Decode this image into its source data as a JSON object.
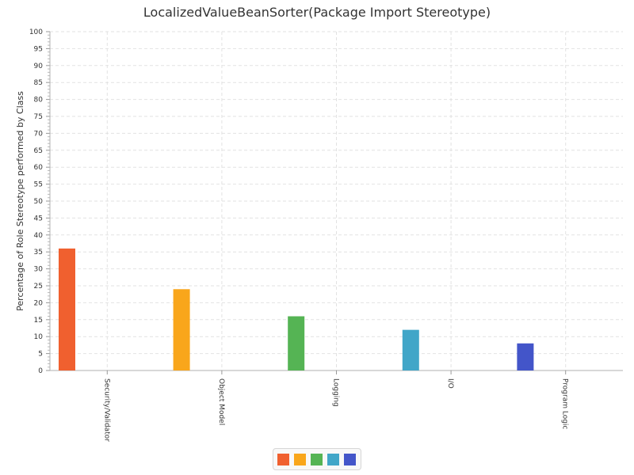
{
  "chart_data": {
    "type": "bar",
    "title": "LocalizedValueBeanSorter(Package Import Stereotype)",
    "xlabel": "",
    "ylabel": "Percentage of Role Stereotype performed by Class",
    "categories": [
      "Security/Validator",
      "Object Model",
      "Logging",
      "I/O",
      "Program Logic"
    ],
    "values": [
      36,
      24,
      16,
      12,
      8
    ],
    "colors": [
      "#f0602f",
      "#f9a61b",
      "#55b454",
      "#41a6c8",
      "#4355c9"
    ],
    "ylim": [
      0,
      100
    ],
    "y_ticks": [
      0,
      5,
      10,
      15,
      20,
      25,
      30,
      35,
      40,
      45,
      50,
      55,
      60,
      65,
      70,
      75,
      80,
      85,
      90,
      95,
      100
    ],
    "grid": true,
    "legend": "bottom-center"
  }
}
